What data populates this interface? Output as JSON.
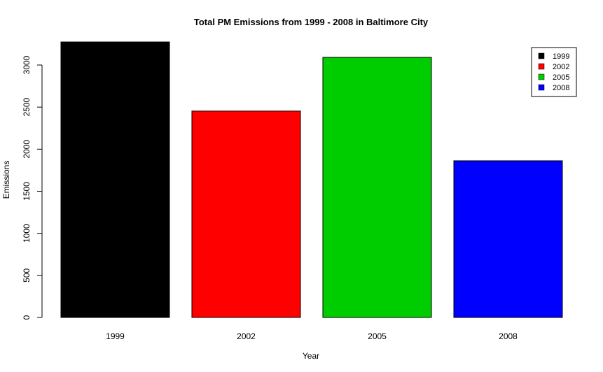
{
  "chart_data": {
    "type": "bar",
    "title": "Total PM Emissions from 1999 - 2008 in Baltimore City",
    "xlabel": "Year",
    "ylabel": "Emissions",
    "categories": [
      "1999",
      "2002",
      "2005",
      "2008"
    ],
    "values": [
      3274,
      2453,
      3091,
      1862
    ],
    "colors": [
      "#000000",
      "#ff0000",
      "#00cd00",
      "#0000ff"
    ],
    "yticks": [
      0,
      500,
      1000,
      1500,
      2000,
      2500,
      3000
    ],
    "ylim": [
      0,
      3274
    ],
    "grid": false,
    "legend": {
      "position": "top-right",
      "entries": [
        "1999",
        "2002",
        "2005",
        "2008"
      ]
    }
  }
}
